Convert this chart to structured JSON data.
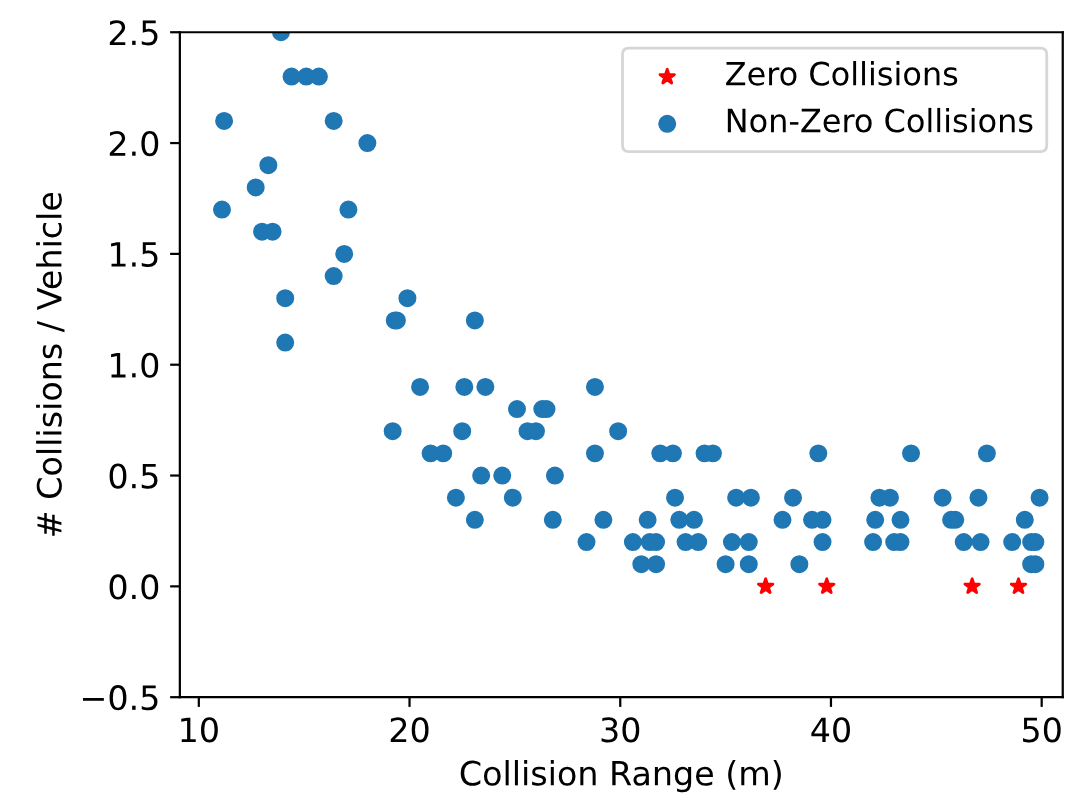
{
  "chart_data": {
    "type": "scatter",
    "xlabel": "Collision Range (m)",
    "ylabel": "# Collisions / Vehicle",
    "xlim": [
      9.1,
      51.0
    ],
    "ylim": [
      -0.5,
      2.5
    ],
    "xticks": [
      10,
      20,
      30,
      40,
      50
    ],
    "yticks": [
      {
        "value": -0.5,
        "label": "−0.5"
      },
      {
        "value": 0,
        "label": "0.0"
      },
      0.5,
      {
        "value": 1,
        "label": "1.0"
      },
      1.5,
      {
        "value": 2,
        "label": "2.0"
      },
      2.5
    ],
    "grid": false,
    "legend": "top right",
    "series": [
      {
        "name": "Zero Collisions",
        "color": "#ff0000",
        "marker": "star",
        "x": [
          36.9,
          39.8,
          46.7,
          48.9
        ],
        "values": [
          0.0,
          0.0,
          0.0,
          0.0
        ]
      },
      {
        "name": "Non-Zero Collisions",
        "color": "#1f77b4",
        "marker": "circle",
        "x": [
          11.2,
          11.1,
          12.7,
          13.3,
          13.0,
          13.5,
          13.9,
          14.1,
          14.1,
          14.4,
          15.1,
          15.7,
          16.4,
          16.4,
          16.9,
          17.1,
          18.0,
          19.3,
          19.4,
          19.9,
          20.5,
          23.1,
          22.6,
          23.6,
          28.8,
          19.2,
          22.5,
          25.1,
          26.3,
          26.5,
          25.6,
          26.0,
          29.9,
          21.0,
          21.6,
          28.8,
          31.9,
          23.4,
          24.4,
          26.9,
          22.2,
          24.9,
          23.1,
          26.8,
          29.2,
          31.3,
          28.4,
          30.6,
          31.4,
          31.7,
          31.0,
          31.7,
          32.5,
          34.0,
          34.4,
          39.4,
          43.8,
          47.4,
          32.6,
          35.5,
          36.2,
          38.2,
          42.3,
          42.8,
          45.3,
          47.0,
          49.9,
          32.8,
          33.5,
          37.7,
          39.1,
          39.6,
          42.1,
          43.3,
          45.7,
          45.9,
          49.2,
          33.1,
          33.7,
          35.3,
          36.1,
          39.6,
          42.0,
          43.0,
          43.3,
          46.3,
          47.1,
          48.6,
          49.5,
          49.7,
          35.0,
          36.1,
          38.5,
          49.5,
          49.7
        ],
        "values": [
          2.1,
          1.7,
          1.8,
          1.9,
          1.6,
          1.6,
          2.5,
          1.3,
          1.1,
          2.3,
          2.3,
          2.3,
          2.1,
          1.4,
          1.5,
          1.7,
          2.0,
          1.2,
          1.2,
          1.3,
          0.9,
          1.2,
          0.9,
          0.9,
          0.9,
          0.7,
          0.7,
          0.8,
          0.8,
          0.8,
          0.7,
          0.7,
          0.7,
          0.6,
          0.6,
          0.6,
          0.6,
          0.5,
          0.5,
          0.5,
          0.4,
          0.4,
          0.3,
          0.3,
          0.3,
          0.3,
          0.2,
          0.2,
          0.2,
          0.2,
          0.1,
          0.1,
          0.6,
          0.6,
          0.6,
          0.6,
          0.6,
          0.6,
          0.4,
          0.4,
          0.4,
          0.4,
          0.4,
          0.4,
          0.4,
          0.4,
          0.4,
          0.3,
          0.3,
          0.3,
          0.3,
          0.3,
          0.3,
          0.3,
          0.3,
          0.3,
          0.3,
          0.2,
          0.2,
          0.2,
          0.2,
          0.2,
          0.2,
          0.2,
          0.2,
          0.2,
          0.2,
          0.2,
          0.2,
          0.2,
          0.1,
          0.1,
          0.1,
          0.1,
          0.1
        ]
      }
    ]
  }
}
